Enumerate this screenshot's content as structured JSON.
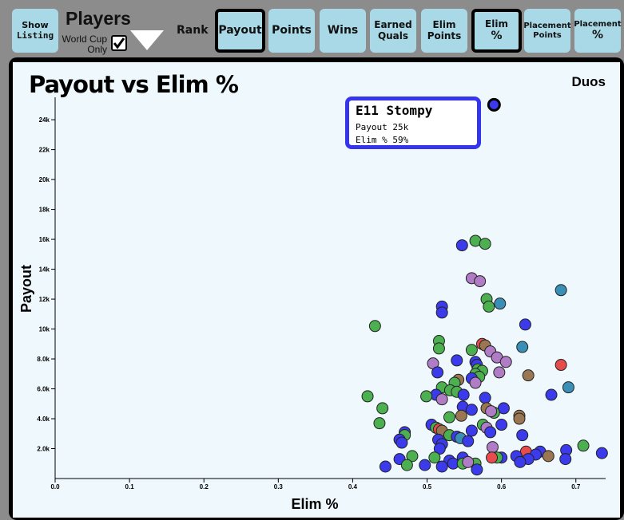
{
  "toolbar": {
    "show_listing": [
      "Show",
      "Listing"
    ],
    "players_label": "Players",
    "world_cup_label": [
      "World Cup",
      "Only"
    ],
    "world_cup_checked": true,
    "rank_label": "Rank",
    "buttons": [
      {
        "label": [
          "Payout"
        ],
        "selected": true
      },
      {
        "label": [
          "Points"
        ],
        "selected": false
      },
      {
        "label": [
          "Wins"
        ],
        "selected": false
      },
      {
        "label": [
          "Earned",
          "Quals"
        ],
        "selected": false
      },
      {
        "label": [
          "Elim",
          "Points"
        ],
        "selected": false
      },
      {
        "label": [
          "Elim",
          "%"
        ],
        "selected": true
      },
      {
        "label": [
          "Placement",
          "Points"
        ],
        "selected": false
      },
      {
        "label": [
          "Placement",
          "%"
        ],
        "selected": false
      }
    ]
  },
  "tooltip": {
    "name": "E11 Stompy",
    "payout_line": "Payout 25k",
    "elim_line": "Elim % 59%"
  },
  "colors": {
    "blue": "#3b3bec",
    "green": "#4caf50",
    "purple": "#b07cc6",
    "brown": "#9b7653",
    "red": "#e74c4c",
    "teal": "#3a8fb7",
    "highlight": "#3535ee"
  },
  "chart_data": {
    "type": "scatter",
    "title": "Payout vs Elim %",
    "mode_label": "Duos",
    "xlabel": "Elim %",
    "ylabel": "Payout",
    "xlim": [
      0.0,
      0.74
    ],
    "ylim": [
      0,
      25500
    ],
    "x_ticks": [
      0.0,
      0.1,
      0.2,
      0.3,
      0.4,
      0.5,
      0.6,
      0.7
    ],
    "x_tick_labels": [
      "0.0",
      "0.1",
      "0.2",
      "0.3",
      "0.4",
      "0.5",
      "0.6",
      "0.7"
    ],
    "y_ticks": [
      2000,
      4000,
      6000,
      8000,
      10000,
      12000,
      14000,
      16000,
      18000,
      20000,
      22000,
      24000
    ],
    "y_tick_labels": [
      "2.0k",
      "4.0k",
      "6.0k",
      "8.0k",
      "10k",
      "12k",
      "14k",
      "16k",
      "18k",
      "20k",
      "22k",
      "24k"
    ],
    "highlight": {
      "x": 0.59,
      "y": 25000,
      "color": "blue"
    },
    "points": [
      {
        "x": 0.43,
        "y": 10200,
        "color": "green"
      },
      {
        "x": 0.565,
        "y": 15900,
        "color": "green"
      },
      {
        "x": 0.578,
        "y": 15700,
        "color": "green"
      },
      {
        "x": 0.547,
        "y": 15600,
        "color": "blue"
      },
      {
        "x": 0.56,
        "y": 13400,
        "color": "purple"
      },
      {
        "x": 0.571,
        "y": 13200,
        "color": "purple"
      },
      {
        "x": 0.68,
        "y": 12600,
        "color": "teal"
      },
      {
        "x": 0.58,
        "y": 12000,
        "color": "green"
      },
      {
        "x": 0.598,
        "y": 11700,
        "color": "teal"
      },
      {
        "x": 0.583,
        "y": 11500,
        "color": "green"
      },
      {
        "x": 0.52,
        "y": 11500,
        "color": "blue"
      },
      {
        "x": 0.52,
        "y": 11100,
        "color": "blue"
      },
      {
        "x": 0.632,
        "y": 10300,
        "color": "blue"
      },
      {
        "x": 0.516,
        "y": 9200,
        "color": "green"
      },
      {
        "x": 0.628,
        "y": 8800,
        "color": "teal"
      },
      {
        "x": 0.516,
        "y": 8700,
        "color": "green"
      },
      {
        "x": 0.56,
        "y": 8600,
        "color": "green"
      },
      {
        "x": 0.574,
        "y": 9000,
        "color": "red"
      },
      {
        "x": 0.578,
        "y": 8900,
        "color": "brown"
      },
      {
        "x": 0.585,
        "y": 8500,
        "color": "purple"
      },
      {
        "x": 0.594,
        "y": 8100,
        "color": "purple"
      },
      {
        "x": 0.606,
        "y": 7800,
        "color": "purple"
      },
      {
        "x": 0.54,
        "y": 7900,
        "color": "blue"
      },
      {
        "x": 0.508,
        "y": 7700,
        "color": "purple"
      },
      {
        "x": 0.565,
        "y": 7800,
        "color": "blue"
      },
      {
        "x": 0.567,
        "y": 7600,
        "color": "blue"
      },
      {
        "x": 0.68,
        "y": 7600,
        "color": "red"
      },
      {
        "x": 0.568,
        "y": 7300,
        "color": "green"
      },
      {
        "x": 0.574,
        "y": 7200,
        "color": "green"
      },
      {
        "x": 0.597,
        "y": 7100,
        "color": "purple"
      },
      {
        "x": 0.514,
        "y": 7100,
        "color": "blue"
      },
      {
        "x": 0.565,
        "y": 7000,
        "color": "green"
      },
      {
        "x": 0.57,
        "y": 6800,
        "color": "green"
      },
      {
        "x": 0.636,
        "y": 6900,
        "color": "brown"
      },
      {
        "x": 0.56,
        "y": 6700,
        "color": "blue"
      },
      {
        "x": 0.542,
        "y": 6600,
        "color": "brown"
      },
      {
        "x": 0.537,
        "y": 6400,
        "color": "green"
      },
      {
        "x": 0.565,
        "y": 6400,
        "color": "purple"
      },
      {
        "x": 0.52,
        "y": 6100,
        "color": "green"
      },
      {
        "x": 0.531,
        "y": 5900,
        "color": "green"
      },
      {
        "x": 0.69,
        "y": 6100,
        "color": "teal"
      },
      {
        "x": 0.54,
        "y": 5800,
        "color": "green"
      },
      {
        "x": 0.549,
        "y": 5600,
        "color": "blue"
      },
      {
        "x": 0.512,
        "y": 5600,
        "color": "blue"
      },
      {
        "x": 0.42,
        "y": 5500,
        "color": "green"
      },
      {
        "x": 0.499,
        "y": 5500,
        "color": "green"
      },
      {
        "x": 0.667,
        "y": 5600,
        "color": "blue"
      },
      {
        "x": 0.578,
        "y": 5400,
        "color": "blue"
      },
      {
        "x": 0.52,
        "y": 5300,
        "color": "purple"
      },
      {
        "x": 0.548,
        "y": 4800,
        "color": "blue"
      },
      {
        "x": 0.44,
        "y": 4700,
        "color": "green"
      },
      {
        "x": 0.58,
        "y": 4700,
        "color": "brown"
      },
      {
        "x": 0.603,
        "y": 4700,
        "color": "blue"
      },
      {
        "x": 0.56,
        "y": 4600,
        "color": "blue"
      },
      {
        "x": 0.59,
        "y": 4400,
        "color": "green"
      },
      {
        "x": 0.586,
        "y": 4500,
        "color": "purple"
      },
      {
        "x": 0.546,
        "y": 4200,
        "color": "brown"
      },
      {
        "x": 0.53,
        "y": 4100,
        "color": "green"
      },
      {
        "x": 0.624,
        "y": 4200,
        "color": "brown"
      },
      {
        "x": 0.624,
        "y": 4000,
        "color": "brown"
      },
      {
        "x": 0.436,
        "y": 3700,
        "color": "green"
      },
      {
        "x": 0.506,
        "y": 3600,
        "color": "blue"
      },
      {
        "x": 0.512,
        "y": 3400,
        "color": "green"
      },
      {
        "x": 0.516,
        "y": 3300,
        "color": "red"
      },
      {
        "x": 0.52,
        "y": 3200,
        "color": "brown"
      },
      {
        "x": 0.575,
        "y": 3600,
        "color": "green"
      },
      {
        "x": 0.58,
        "y": 3400,
        "color": "purple"
      },
      {
        "x": 0.6,
        "y": 3600,
        "color": "blue"
      },
      {
        "x": 0.56,
        "y": 3200,
        "color": "blue"
      },
      {
        "x": 0.585,
        "y": 3100,
        "color": "blue"
      },
      {
        "x": 0.47,
        "y": 3100,
        "color": "blue"
      },
      {
        "x": 0.47,
        "y": 2900,
        "color": "green"
      },
      {
        "x": 0.53,
        "y": 2900,
        "color": "green"
      },
      {
        "x": 0.54,
        "y": 2800,
        "color": "blue"
      },
      {
        "x": 0.545,
        "y": 2700,
        "color": "teal"
      },
      {
        "x": 0.628,
        "y": 2900,
        "color": "blue"
      },
      {
        "x": 0.515,
        "y": 2600,
        "color": "blue"
      },
      {
        "x": 0.555,
        "y": 2500,
        "color": "blue"
      },
      {
        "x": 0.463,
        "y": 2600,
        "color": "blue"
      },
      {
        "x": 0.466,
        "y": 2400,
        "color": "blue"
      },
      {
        "x": 0.52,
        "y": 2300,
        "color": "blue"
      },
      {
        "x": 0.517,
        "y": 2000,
        "color": "blue"
      },
      {
        "x": 0.588,
        "y": 2100,
        "color": "purple"
      },
      {
        "x": 0.71,
        "y": 2200,
        "color": "green"
      },
      {
        "x": 0.652,
        "y": 1800,
        "color": "blue"
      },
      {
        "x": 0.687,
        "y": 1900,
        "color": "blue"
      },
      {
        "x": 0.735,
        "y": 1700,
        "color": "blue"
      },
      {
        "x": 0.633,
        "y": 1800,
        "color": "red"
      },
      {
        "x": 0.646,
        "y": 1600,
        "color": "blue"
      },
      {
        "x": 0.663,
        "y": 1500,
        "color": "brown"
      },
      {
        "x": 0.62,
        "y": 1500,
        "color": "blue"
      },
      {
        "x": 0.6,
        "y": 1400,
        "color": "blue"
      },
      {
        "x": 0.594,
        "y": 1400,
        "color": "green"
      },
      {
        "x": 0.587,
        "y": 1400,
        "color": "red"
      },
      {
        "x": 0.548,
        "y": 1400,
        "color": "blue"
      },
      {
        "x": 0.51,
        "y": 1400,
        "color": "green"
      },
      {
        "x": 0.48,
        "y": 1500,
        "color": "green"
      },
      {
        "x": 0.463,
        "y": 1300,
        "color": "blue"
      },
      {
        "x": 0.53,
        "y": 1200,
        "color": "blue"
      },
      {
        "x": 0.535,
        "y": 1000,
        "color": "blue"
      },
      {
        "x": 0.548,
        "y": 1000,
        "color": "green"
      },
      {
        "x": 0.565,
        "y": 1000,
        "color": "green"
      },
      {
        "x": 0.555,
        "y": 1100,
        "color": "purple"
      },
      {
        "x": 0.636,
        "y": 1300,
        "color": "blue"
      },
      {
        "x": 0.625,
        "y": 1100,
        "color": "blue"
      },
      {
        "x": 0.686,
        "y": 1300,
        "color": "blue"
      },
      {
        "x": 0.444,
        "y": 800,
        "color": "blue"
      },
      {
        "x": 0.473,
        "y": 900,
        "color": "green"
      },
      {
        "x": 0.497,
        "y": 900,
        "color": "blue"
      },
      {
        "x": 0.52,
        "y": 800,
        "color": "blue"
      },
      {
        "x": 0.567,
        "y": 600,
        "color": "blue"
      }
    ]
  }
}
